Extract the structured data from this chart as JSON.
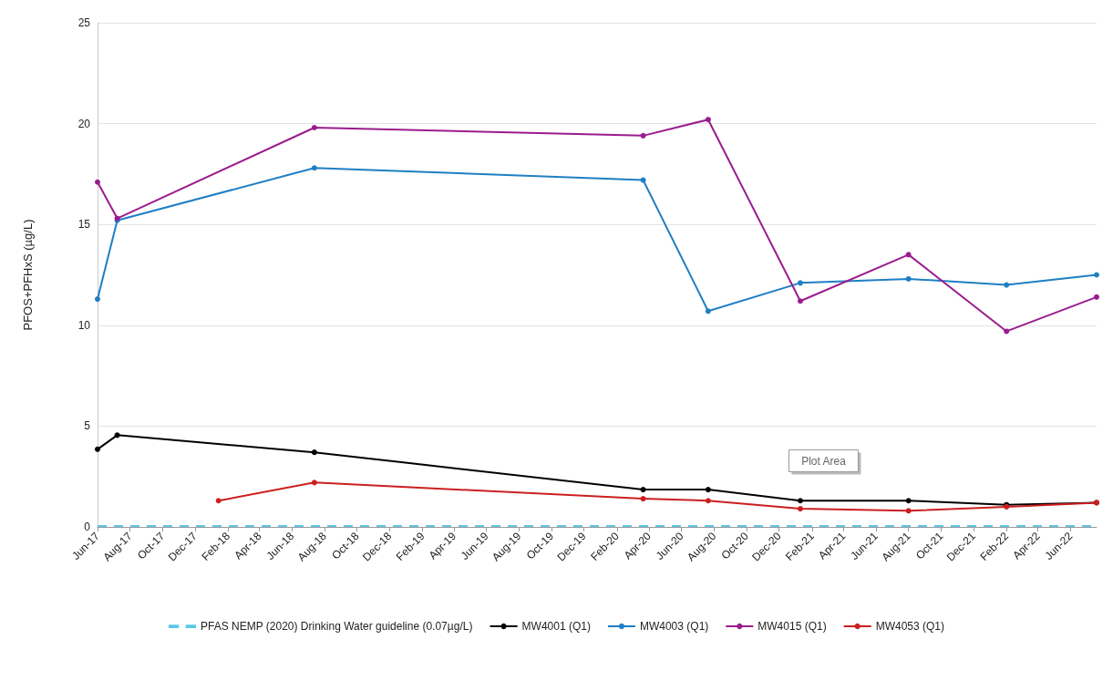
{
  "chart_data": {
    "type": "line",
    "ylabel": "PFOS+PFHxS (µg/L)",
    "x": [
      "2017-06-01",
      "2017-07-08",
      "2018-07-13",
      "2020-03-21",
      "2020-07-21",
      "2021-01-10",
      "2021-08-01",
      "2022-02-01",
      "2022-07-20"
    ],
    "series": [
      {
        "name": "MW4001 (Q1)",
        "color": "#000000",
        "values": [
          3.85,
          4.55,
          3.7,
          1.85,
          1.85,
          1.3,
          1.3,
          1.1,
          1.2
        ]
      },
      {
        "name": "MW4003 (Q1)",
        "color": "#1f7fc4",
        "values": [
          11.3,
          15.2,
          17.8,
          17.2,
          10.7,
          12.1,
          12.3,
          12.0,
          12.5
        ]
      },
      {
        "name": "MW4015 (Q1)",
        "color": "#9b1c8e",
        "values": [
          17.1,
          15.3,
          19.8,
          19.4,
          20.2,
          11.2,
          13.5,
          9.7,
          11.4
        ]
      },
      {
        "name": "MW4053 (Q1)",
        "color": "#cc1f1f",
        "x": [
          "2018-01-14",
          "2018-07-13",
          "2020-03-21",
          "2020-07-21",
          "2021-01-10",
          "2021-08-01",
          "2022-02-01",
          "2022-07-20"
        ],
        "values": [
          1.3,
          2.2,
          1.4,
          1.3,
          0.9,
          0.8,
          1.0,
          1.2
        ]
      }
    ],
    "xlim": [
      "2017-06-01",
      "2022-07-20"
    ],
    "xticks": [
      {
        "value": "2017-06-01",
        "label": "Jun-17"
      },
      {
        "value": "2017-08-01",
        "label": "Aug-17"
      },
      {
        "value": "2017-10-01",
        "label": "Oct-17"
      },
      {
        "value": "2017-12-01",
        "label": "Dec-17"
      },
      {
        "value": "2018-02-01",
        "label": "Feb-18"
      },
      {
        "value": "2018-04-01",
        "label": "Apr-18"
      },
      {
        "value": "2018-06-01",
        "label": "Jun-18"
      },
      {
        "value": "2018-08-01",
        "label": "Aug-18"
      },
      {
        "value": "2018-10-01",
        "label": "Oct-18"
      },
      {
        "value": "2018-12-01",
        "label": "Dec-18"
      },
      {
        "value": "2019-02-01",
        "label": "Feb-19"
      },
      {
        "value": "2019-04-01",
        "label": "Apr-19"
      },
      {
        "value": "2019-06-01",
        "label": "Jun-19"
      },
      {
        "value": "2019-08-01",
        "label": "Aug-19"
      },
      {
        "value": "2019-10-01",
        "label": "Oct-19"
      },
      {
        "value": "2019-12-01",
        "label": "Dec-19"
      },
      {
        "value": "2020-02-01",
        "label": "Feb-20"
      },
      {
        "value": "2020-04-01",
        "label": "Apr-20"
      },
      {
        "value": "2020-06-01",
        "label": "Jun-20"
      },
      {
        "value": "2020-08-01",
        "label": "Aug-20"
      },
      {
        "value": "2020-10-01",
        "label": "Oct-20"
      },
      {
        "value": "2020-12-01",
        "label": "Dec-20"
      },
      {
        "value": "2021-02-01",
        "label": "Feb-21"
      },
      {
        "value": "2021-04-01",
        "label": "Apr-21"
      },
      {
        "value": "2021-06-01",
        "label": "Jun-21"
      },
      {
        "value": "2021-08-01",
        "label": "Aug-21"
      },
      {
        "value": "2021-10-01",
        "label": "Oct-21"
      },
      {
        "value": "2021-12-01",
        "label": "Dec-21"
      },
      {
        "value": "2022-02-01",
        "label": "Feb-22"
      },
      {
        "value": "2022-04-01",
        "label": "Apr-22"
      },
      {
        "value": "2022-06-01",
        "label": "Jun-22"
      }
    ],
    "ylim": [
      0,
      25
    ],
    "yticks": [
      0,
      5,
      10,
      15,
      20,
      25
    ],
    "ref_lines": [
      {
        "axis": "y",
        "value": 0.07,
        "label": "PFAS NEMP (2020) Drinking Water guideline (0.07µg/L)",
        "color": "#5bc8e8",
        "line_style": "dashed"
      }
    ],
    "annotations": [
      "Plot Area"
    ],
    "grid": "y",
    "legend": "bottom",
    "marker": "circle",
    "line_style": "solid"
  }
}
